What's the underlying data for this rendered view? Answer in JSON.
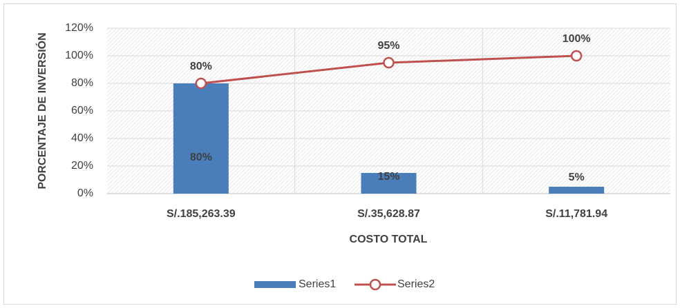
{
  "chart_data": {
    "type": "bar",
    "categories": [
      "S/.185,263.39",
      "S/.35,628.87",
      "S/.11,781.94"
    ],
    "xlabel": "COSTO TOTAL",
    "ylabel": "PORCENTAJE DE INVERSIÓN",
    "series": [
      {
        "name": "Series1",
        "type": "bar",
        "color": "#4a7ebb",
        "values": [
          80,
          15,
          5
        ],
        "value_labels": [
          "80%",
          "15%",
          "5%"
        ]
      },
      {
        "name": "Series2",
        "type": "line",
        "color": "#c0504d",
        "values": [
          80,
          95,
          100
        ],
        "value_labels": [
          "80%",
          "95%",
          "100%"
        ]
      }
    ],
    "ylim": [
      0,
      120
    ],
    "yticks": [
      {
        "value": 0,
        "label": "0%"
      },
      {
        "value": 20,
        "label": "20%"
      },
      {
        "value": 40,
        "label": "40%"
      },
      {
        "value": 60,
        "label": "60%"
      },
      {
        "value": 80,
        "label": "80%"
      },
      {
        "value": 100,
        "label": "100%"
      },
      {
        "value": 120,
        "label": "120%"
      }
    ],
    "grid": true,
    "legend": "bottom"
  }
}
